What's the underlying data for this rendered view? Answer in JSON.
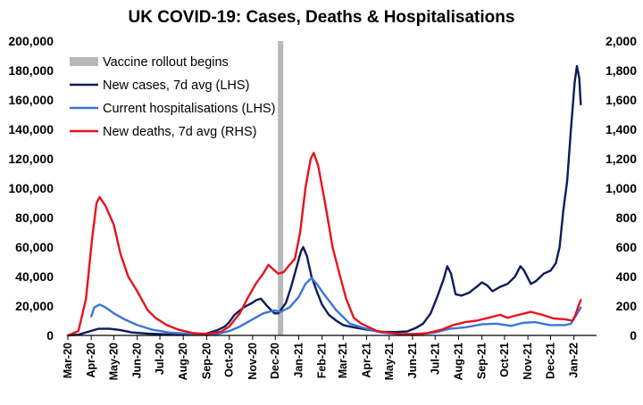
{
  "chart_data": {
    "type": "line",
    "title": "UK COVID-19: Cases, Deaths & Hospitalisations",
    "x_ticks": [
      "Mar-20",
      "Apr-20",
      "May-20",
      "Jun-20",
      "Jul-20",
      "Aug-20",
      "Sep-20",
      "Oct-20",
      "Nov-20",
      "Dec-20",
      "Jan-21",
      "Feb-21",
      "Mar-21",
      "Apr-21",
      "May-21",
      "Jun-21",
      "Jul-21",
      "Aug-21",
      "Sep-21",
      "Oct-21",
      "Nov-21",
      "Dec-21",
      "Jan-22"
    ],
    "y_left": {
      "min": 0,
      "max": 200000,
      "ticks": [
        "0",
        "20,000",
        "40,000",
        "60,000",
        "80,000",
        "100,000",
        "120,000",
        "140,000",
        "160,000",
        "180,000",
        "200,000"
      ]
    },
    "y_right": {
      "min": 0,
      "max": 2000,
      "ticks": [
        "0",
        "200",
        "400",
        "600",
        "800",
        "1,000",
        "1,200",
        "1,400",
        "1,600",
        "1,800",
        "2,000"
      ]
    },
    "grid": false,
    "legend_position": "top-left",
    "annotation": {
      "label": "Vaccine rollout begins",
      "date": "2020-12-08",
      "color": "#b8b8b8"
    },
    "series": [
      {
        "name": "New cases, 7d avg (LHS)",
        "axis": "left",
        "color": "#0a1d5c",
        "points": [
          [
            "2020-03-01",
            0
          ],
          [
            "2020-03-15",
            500
          ],
          [
            "2020-03-31",
            3000
          ],
          [
            "2020-04-10",
            4500
          ],
          [
            "2020-04-25",
            4600
          ],
          [
            "2020-05-10",
            3600
          ],
          [
            "2020-05-25",
            2000
          ],
          [
            "2020-06-15",
            1200
          ],
          [
            "2020-07-15",
            600
          ],
          [
            "2020-08-15",
            800
          ],
          [
            "2020-09-01",
            1300
          ],
          [
            "2020-09-15",
            3500
          ],
          [
            "2020-09-25",
            6000
          ],
          [
            "2020-10-01",
            9000
          ],
          [
            "2020-10-08",
            14000
          ],
          [
            "2020-10-20",
            19000
          ],
          [
            "2020-10-31",
            22000
          ],
          [
            "2020-11-06",
            24000
          ],
          [
            "2020-11-12",
            25000
          ],
          [
            "2020-11-20",
            20000
          ],
          [
            "2020-11-30",
            15000
          ],
          [
            "2020-12-05",
            15000
          ],
          [
            "2020-12-15",
            22000
          ],
          [
            "2020-12-22",
            33000
          ],
          [
            "2020-12-28",
            44000
          ],
          [
            "2021-01-04",
            57000
          ],
          [
            "2021-01-07",
            60000
          ],
          [
            "2021-01-12",
            54000
          ],
          [
            "2021-01-18",
            40000
          ],
          [
            "2021-01-25",
            30000
          ],
          [
            "2021-02-01",
            21000
          ],
          [
            "2021-02-10",
            14000
          ],
          [
            "2021-02-20",
            10000
          ],
          [
            "2021-03-01",
            7000
          ],
          [
            "2021-03-15",
            5500
          ],
          [
            "2021-04-01",
            4000
          ],
          [
            "2021-04-20",
            2500
          ],
          [
            "2021-05-10",
            2300
          ],
          [
            "2021-05-25",
            2700
          ],
          [
            "2021-06-05",
            5000
          ],
          [
            "2021-06-15",
            8000
          ],
          [
            "2021-06-25",
            15000
          ],
          [
            "2021-07-05",
            28000
          ],
          [
            "2021-07-12",
            38000
          ],
          [
            "2021-07-17",
            47000
          ],
          [
            "2021-07-22",
            42000
          ],
          [
            "2021-07-28",
            28000
          ],
          [
            "2021-08-05",
            27000
          ],
          [
            "2021-08-15",
            29000
          ],
          [
            "2021-08-25",
            33000
          ],
          [
            "2021-09-01",
            36000
          ],
          [
            "2021-09-08",
            34000
          ],
          [
            "2021-09-15",
            30000
          ],
          [
            "2021-09-25",
            33000
          ],
          [
            "2021-10-05",
            35000
          ],
          [
            "2021-10-15",
            40000
          ],
          [
            "2021-10-22",
            47000
          ],
          [
            "2021-10-27",
            44000
          ],
          [
            "2021-11-05",
            35000
          ],
          [
            "2021-11-12",
            37000
          ],
          [
            "2021-11-22",
            42000
          ],
          [
            "2021-12-01",
            44000
          ],
          [
            "2021-12-08",
            49000
          ],
          [
            "2021-12-13",
            60000
          ],
          [
            "2021-12-18",
            85000
          ],
          [
            "2021-12-23",
            105000
          ],
          [
            "2021-12-28",
            140000
          ],
          [
            "2022-01-02",
            172000
          ],
          [
            "2022-01-05",
            183000
          ],
          [
            "2022-01-08",
            175000
          ],
          [
            "2022-01-10",
            157000
          ]
        ]
      },
      {
        "name": "Current hospitalisations (LHS)",
        "axis": "left",
        "color": "#3a76d6",
        "points": [
          [
            "2020-04-01",
            13000
          ],
          [
            "2020-04-05",
            19000
          ],
          [
            "2020-04-12",
            21000
          ],
          [
            "2020-04-20",
            19000
          ],
          [
            "2020-05-01",
            15000
          ],
          [
            "2020-05-15",
            11000
          ],
          [
            "2020-06-01",
            7000
          ],
          [
            "2020-06-20",
            4000
          ],
          [
            "2020-07-15",
            1800
          ],
          [
            "2020-08-15",
            900
          ],
          [
            "2020-09-01",
            700
          ],
          [
            "2020-09-15",
            1000
          ],
          [
            "2020-10-01",
            3000
          ],
          [
            "2020-10-15",
            6000
          ],
          [
            "2020-11-01",
            11000
          ],
          [
            "2020-11-15",
            15000
          ],
          [
            "2020-11-30",
            17000
          ],
          [
            "2020-12-08",
            16000
          ],
          [
            "2020-12-20",
            19000
          ],
          [
            "2021-01-01",
            26000
          ],
          [
            "2021-01-10",
            35000
          ],
          [
            "2021-01-18",
            39000
          ],
          [
            "2021-01-25",
            35000
          ],
          [
            "2021-02-05",
            27000
          ],
          [
            "2021-02-20",
            17000
          ],
          [
            "2021-03-10",
            8000
          ],
          [
            "2021-04-01",
            4500
          ],
          [
            "2021-04-20",
            2000
          ],
          [
            "2021-05-15",
            1000
          ],
          [
            "2021-06-15",
            1100
          ],
          [
            "2021-07-01",
            2000
          ],
          [
            "2021-07-20",
            4500
          ],
          [
            "2021-08-10",
            5500
          ],
          [
            "2021-09-01",
            7500
          ],
          [
            "2021-09-20",
            8000
          ],
          [
            "2021-10-10",
            6500
          ],
          [
            "2021-10-25",
            8500
          ],
          [
            "2021-11-10",
            9000
          ],
          [
            "2021-11-30",
            7000
          ],
          [
            "2021-12-20",
            7000
          ],
          [
            "2021-12-28",
            8000
          ],
          [
            "2022-01-03",
            13000
          ],
          [
            "2022-01-08",
            17000
          ],
          [
            "2022-01-10",
            19000
          ]
        ]
      },
      {
        "name": "New deaths, 7d avg (RHS)",
        "axis": "right",
        "color": "#e8121c",
        "points": [
          [
            "2020-03-01",
            0
          ],
          [
            "2020-03-15",
            30
          ],
          [
            "2020-03-25",
            250
          ],
          [
            "2020-04-02",
            650
          ],
          [
            "2020-04-08",
            900
          ],
          [
            "2020-04-12",
            940
          ],
          [
            "2020-04-20",
            880
          ],
          [
            "2020-05-01",
            750
          ],
          [
            "2020-05-10",
            550
          ],
          [
            "2020-05-20",
            400
          ],
          [
            "2020-06-01",
            300
          ],
          [
            "2020-06-15",
            170
          ],
          [
            "2020-06-25",
            120
          ],
          [
            "2020-07-10",
            70
          ],
          [
            "2020-07-25",
            40
          ],
          [
            "2020-08-15",
            15
          ],
          [
            "2020-09-01",
            10
          ],
          [
            "2020-09-20",
            25
          ],
          [
            "2020-10-01",
            60
          ],
          [
            "2020-10-15",
            150
          ],
          [
            "2020-10-25",
            250
          ],
          [
            "2020-11-05",
            350
          ],
          [
            "2020-11-15",
            420
          ],
          [
            "2020-11-22",
            480
          ],
          [
            "2020-11-28",
            450
          ],
          [
            "2020-12-05",
            420
          ],
          [
            "2020-12-12",
            430
          ],
          [
            "2020-12-20",
            480
          ],
          [
            "2020-12-27",
            520
          ],
          [
            "2021-01-03",
            700
          ],
          [
            "2021-01-10",
            1000
          ],
          [
            "2021-01-17",
            1200
          ],
          [
            "2021-01-21",
            1240
          ],
          [
            "2021-01-27",
            1150
          ],
          [
            "2021-02-05",
            900
          ],
          [
            "2021-02-15",
            600
          ],
          [
            "2021-02-25",
            400
          ],
          [
            "2021-03-05",
            250
          ],
          [
            "2021-03-15",
            120
          ],
          [
            "2021-03-25",
            80
          ],
          [
            "2021-04-15",
            30
          ],
          [
            "2021-05-15",
            10
          ],
          [
            "2021-06-01",
            8
          ],
          [
            "2021-06-20",
            15
          ],
          [
            "2021-07-10",
            40
          ],
          [
            "2021-07-25",
            70
          ],
          [
            "2021-08-10",
            90
          ],
          [
            "2021-08-25",
            100
          ],
          [
            "2021-09-10",
            120
          ],
          [
            "2021-09-25",
            140
          ],
          [
            "2021-10-05",
            120
          ],
          [
            "2021-10-20",
            140
          ],
          [
            "2021-11-05",
            160
          ],
          [
            "2021-11-20",
            140
          ],
          [
            "2021-12-05",
            115
          ],
          [
            "2021-12-20",
            110
          ],
          [
            "2021-12-30",
            100
          ],
          [
            "2022-01-03",
            140
          ],
          [
            "2022-01-07",
            200
          ],
          [
            "2022-01-10",
            240
          ]
        ]
      }
    ]
  }
}
